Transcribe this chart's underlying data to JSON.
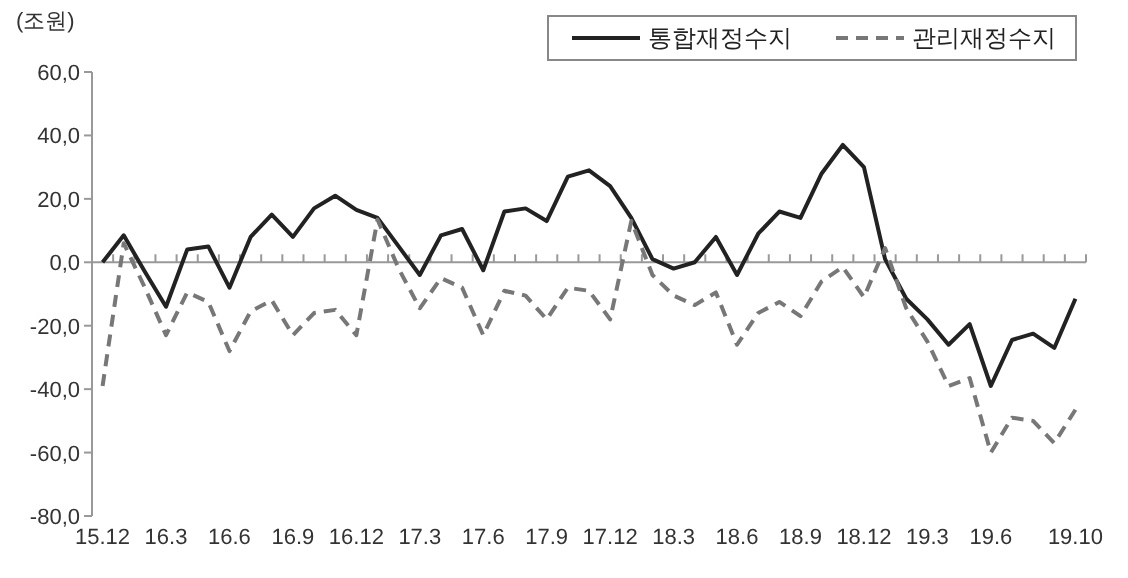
{
  "chart_data": {
    "type": "line",
    "ylabel": "(조원)",
    "categories": [
      "15.12",
      null,
      null,
      "16.3",
      null,
      null,
      "16.6",
      null,
      null,
      "16.9",
      null,
      null,
      "16.12",
      null,
      null,
      "17.3",
      null,
      null,
      "17.6",
      null,
      null,
      "17.9",
      null,
      null,
      "17.12",
      null,
      null,
      "18.3",
      null,
      null,
      "18.6",
      null,
      null,
      "18.9",
      null,
      null,
      "18.12",
      null,
      null,
      "19.3",
      null,
      null,
      "19.6",
      null,
      null,
      null,
      "19.10"
    ],
    "series": [
      {
        "name": "통합재정수지",
        "color": "#222222",
        "line_style": "solid",
        "values": [
          0,
          8.5,
          -3,
          -14,
          4,
          5,
          -8,
          8,
          15,
          8,
          17,
          21,
          16.5,
          14,
          5,
          -4,
          8.5,
          10.5,
          -2.5,
          16,
          17,
          13,
          27,
          29,
          24,
          14,
          1,
          -2,
          0,
          8,
          -4,
          9,
          16,
          14,
          28,
          37,
          30,
          1,
          -11.5,
          -18,
          -26,
          -19.5,
          -39,
          -24.5,
          -22.5,
          -27,
          -11.5
        ]
      },
      {
        "name": "관리재정수지",
        "color": "#777777",
        "line_style": "dashed",
        "values": [
          -39,
          6,
          -8,
          -23,
          -9.5,
          -12.5,
          -28,
          -15.5,
          -12,
          -23,
          -16,
          -15,
          -23,
          13.5,
          -2,
          -14.5,
          -5,
          -8,
          -23,
          -9,
          -10.5,
          -18,
          -8,
          -9,
          -18,
          13,
          -4,
          -10.5,
          -13.5,
          -9.5,
          -26,
          -16,
          -12.5,
          -17,
          -6,
          -1.5,
          -11,
          4.5,
          -14.5,
          -25,
          -39,
          -36.5,
          -60,
          -49,
          -50,
          -57,
          -46.5
        ]
      }
    ],
    "ylim": [
      -80,
      60
    ],
    "yticks": [
      {
        "value": 60,
        "label": "60,0"
      },
      {
        "value": 40,
        "label": "40,0"
      },
      {
        "value": 20,
        "label": "20,0"
      },
      {
        "value": 0,
        "label": "0,0"
      },
      {
        "value": -20,
        "label": "-20,0"
      },
      {
        "value": -40,
        "label": "-40,0"
      },
      {
        "value": -60,
        "label": "-60,0"
      },
      {
        "value": -80,
        "label": "-80,0"
      }
    ],
    "legend": "top right",
    "marker": "none"
  }
}
